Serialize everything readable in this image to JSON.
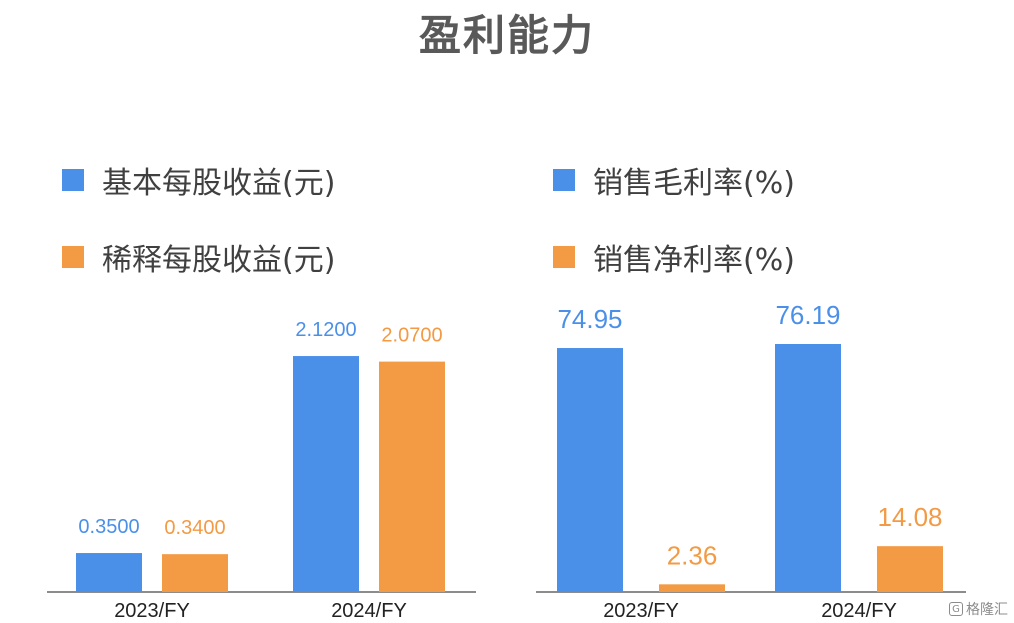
{
  "title": "盈利能力",
  "colors": {
    "blue": "#4A90E8",
    "orange": "#F39A44",
    "axis": "#666666",
    "title": "#595959",
    "text": "#404040"
  },
  "chart_data": [
    {
      "type": "bar",
      "categories": [
        "2023/FY",
        "2024/FY"
      ],
      "series": [
        {
          "name": "基本每股收益(元)",
          "values": [
            0.35,
            2.12
          ],
          "labels": [
            "0.3500",
            "2.1200"
          ],
          "color": "#4A90E8"
        },
        {
          "name": "稀释每股收益(元)",
          "values": [
            0.34,
            2.07
          ],
          "labels": [
            "0.3400",
            "2.0700"
          ],
          "color": "#F39A44"
        }
      ],
      "title": "",
      "xlabel": "",
      "ylabel": "",
      "ylim": [
        0,
        2.5
      ],
      "grid": false,
      "legend": "top-left"
    },
    {
      "type": "bar",
      "categories": [
        "2023/FY",
        "2024/FY"
      ],
      "series": [
        {
          "name": "销售毛利率(%)",
          "values": [
            74.95,
            76.19
          ],
          "labels": [
            "74.95",
            "76.19"
          ],
          "color": "#4A90E8"
        },
        {
          "name": "销售净利率(%)",
          "values": [
            2.36,
            14.08
          ],
          "labels": [
            "2.36",
            "14.08"
          ],
          "color": "#F39A44"
        }
      ],
      "title": "",
      "xlabel": "",
      "ylabel": "",
      "ylim": [
        0,
        90
      ],
      "grid": false,
      "legend": "top-left"
    }
  ],
  "watermark": {
    "icon": "G",
    "text": "格隆汇"
  }
}
